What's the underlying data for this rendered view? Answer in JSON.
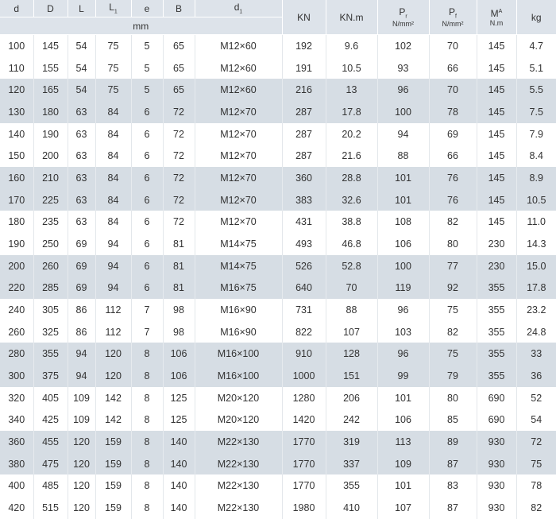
{
  "table": {
    "header": [
      {
        "text": "d"
      },
      {
        "text": "D"
      },
      {
        "text": "L"
      },
      {
        "text": "L",
        "sub": "1"
      },
      {
        "text": "e"
      },
      {
        "text": "B"
      },
      {
        "text": "d",
        "sub": "1"
      },
      {
        "text": "KN"
      },
      {
        "text": "KN.m"
      },
      {
        "text": "P",
        "sub": "r",
        "unit": "N/mm²"
      },
      {
        "text": "P",
        "sub": "f",
        "unit": "N/mm²"
      },
      {
        "text": "M",
        "sub": "A",
        "unit": "N.m"
      },
      {
        "text": "kg"
      }
    ],
    "unit_row": "mm",
    "rows": [
      [
        "100",
        "145",
        "54",
        "75",
        "5",
        "65",
        "M12×60",
        "192",
        "9.6",
        "102",
        "70",
        "145",
        "4.7"
      ],
      [
        "110",
        "155",
        "54",
        "75",
        "5",
        "65",
        "M12×60",
        "191",
        "10.5",
        "93",
        "66",
        "145",
        "5.1"
      ],
      [
        "120",
        "165",
        "54",
        "75",
        "5",
        "65",
        "M12×60",
        "216",
        "13",
        "96",
        "70",
        "145",
        "5.5"
      ],
      [
        "130",
        "180",
        "63",
        "84",
        "6",
        "72",
        "M12×70",
        "287",
        "17.8",
        "100",
        "78",
        "145",
        "7.5"
      ],
      [
        "140",
        "190",
        "63",
        "84",
        "6",
        "72",
        "M12×70",
        "287",
        "20.2",
        "94",
        "69",
        "145",
        "7.9"
      ],
      [
        "150",
        "200",
        "63",
        "84",
        "6",
        "72",
        "M12×70",
        "287",
        "21.6",
        "88",
        "66",
        "145",
        "8.4"
      ],
      [
        "160",
        "210",
        "63",
        "84",
        "6",
        "72",
        "M12×70",
        "360",
        "28.8",
        "101",
        "76",
        "145",
        "8.9"
      ],
      [
        "170",
        "225",
        "63",
        "84",
        "6",
        "72",
        "M12×70",
        "383",
        "32.6",
        "101",
        "76",
        "145",
        "10.5"
      ],
      [
        "180",
        "235",
        "63",
        "84",
        "6",
        "72",
        "M12×70",
        "431",
        "38.8",
        "108",
        "82",
        "145",
        "11.0"
      ],
      [
        "190",
        "250",
        "69",
        "94",
        "6",
        "81",
        "M14×75",
        "493",
        "46.8",
        "106",
        "80",
        "230",
        "14.3"
      ],
      [
        "200",
        "260",
        "69",
        "94",
        "6",
        "81",
        "M14×75",
        "526",
        "52.8",
        "100",
        "77",
        "230",
        "15.0"
      ],
      [
        "220",
        "285",
        "69",
        "94",
        "6",
        "81",
        "M16×75",
        "640",
        "70",
        "119",
        "92",
        "355",
        "17.8"
      ],
      [
        "240",
        "305",
        "86",
        "112",
        "7",
        "98",
        "M16×90",
        "731",
        "88",
        "96",
        "75",
        "355",
        "23.2"
      ],
      [
        "260",
        "325",
        "86",
        "112",
        "7",
        "98",
        "M16×90",
        "822",
        "107",
        "103",
        "82",
        "355",
        "24.8"
      ],
      [
        "280",
        "355",
        "94",
        "120",
        "8",
        "106",
        "M16×100",
        "910",
        "128",
        "96",
        "75",
        "355",
        "33"
      ],
      [
        "300",
        "375",
        "94",
        "120",
        "8",
        "106",
        "M16×100",
        "1000",
        "151",
        "99",
        "79",
        "355",
        "36"
      ],
      [
        "320",
        "405",
        "109",
        "142",
        "8",
        "125",
        "M20×120",
        "1280",
        "206",
        "101",
        "80",
        "690",
        "52"
      ],
      [
        "340",
        "425",
        "109",
        "142",
        "8",
        "125",
        "M20×120",
        "1420",
        "242",
        "106",
        "85",
        "690",
        "54"
      ],
      [
        "360",
        "455",
        "120",
        "159",
        "8",
        "140",
        "M22×130",
        "1770",
        "319",
        "113",
        "89",
        "930",
        "72"
      ],
      [
        "380",
        "475",
        "120",
        "159",
        "8",
        "140",
        "M22×130",
        "1770",
        "337",
        "109",
        "87",
        "930",
        "75"
      ],
      [
        "400",
        "485",
        "120",
        "159",
        "8",
        "140",
        "M22×130",
        "1770",
        "355",
        "101",
        "83",
        "930",
        "78"
      ],
      [
        "420",
        "515",
        "120",
        "159",
        "8",
        "140",
        "M22×130",
        "1980",
        "410",
        "107",
        "87",
        "930",
        "82"
      ]
    ]
  }
}
